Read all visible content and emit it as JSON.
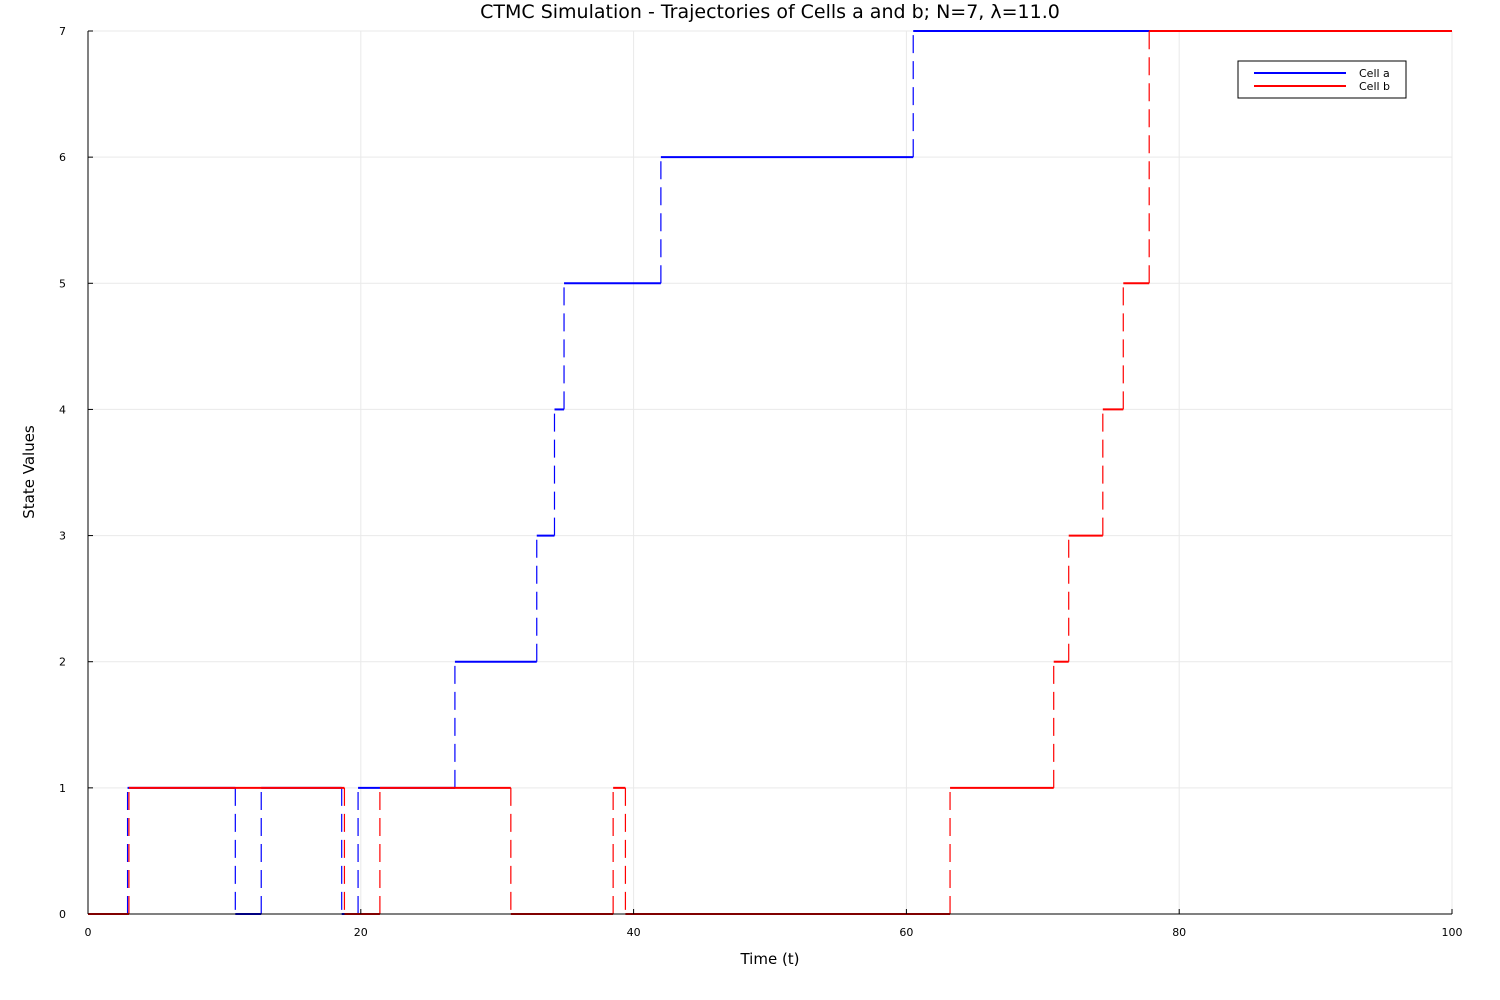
{
  "chart_data": {
    "type": "line",
    "step": "post",
    "title": "CTMC Simulation - Trajectories of Cells a and b; N=7, λ=11.0",
    "xlabel": "Time (t)",
    "ylabel": "State Values",
    "xlim": [
      0,
      100
    ],
    "ylim": [
      0,
      7
    ],
    "xticks": [
      0,
      20,
      40,
      60,
      80,
      100
    ],
    "yticks": [
      0,
      1,
      2,
      3,
      4,
      5,
      6,
      7
    ],
    "grid": true,
    "legend_position": "top-right",
    "series": [
      {
        "name": "Cell a",
        "color": "#0000ff",
        "points": [
          [
            0,
            0
          ],
          [
            2.9,
            1
          ],
          [
            10.8,
            0
          ],
          [
            12.7,
            1
          ],
          [
            18.6,
            0
          ],
          [
            19.8,
            1
          ],
          [
            26.9,
            2
          ],
          [
            32.9,
            3
          ],
          [
            34.2,
            4
          ],
          [
            34.9,
            5
          ],
          [
            42.0,
            6
          ],
          [
            60.5,
            7
          ],
          [
            100,
            7
          ]
        ]
      },
      {
        "name": "Cell b",
        "color": "#ff0000",
        "points": [
          [
            0,
            0
          ],
          [
            3.0,
            1
          ],
          [
            18.8,
            0
          ],
          [
            21.4,
            1
          ],
          [
            31.0,
            0
          ],
          [
            38.5,
            1
          ],
          [
            39.4,
            0
          ],
          [
            63.2,
            1
          ],
          [
            70.8,
            2
          ],
          [
            71.9,
            3
          ],
          [
            74.4,
            4
          ],
          [
            75.9,
            5
          ],
          [
            77.8,
            7
          ],
          [
            100,
            7
          ]
        ]
      }
    ]
  }
}
